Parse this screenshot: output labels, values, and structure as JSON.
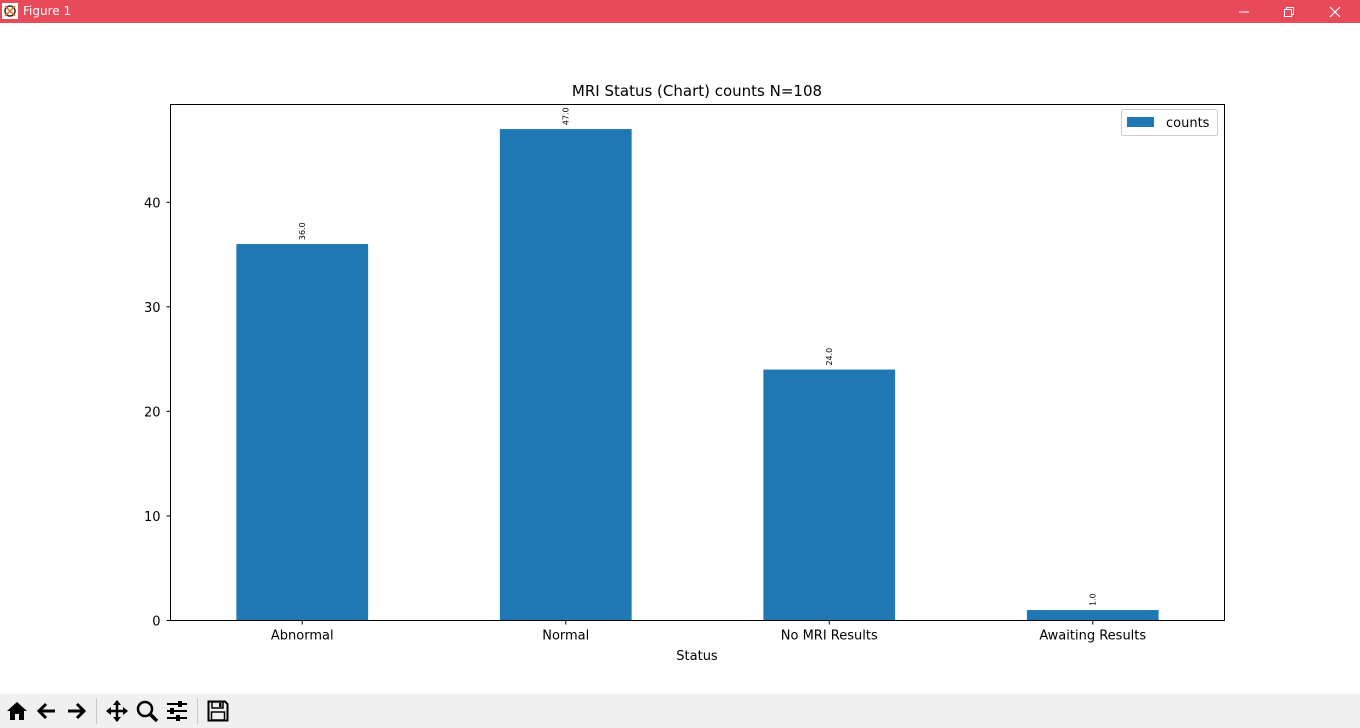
{
  "window": {
    "title": "Figure 1",
    "titlebar_color": "#e84a5a"
  },
  "toolbar": {
    "buttons": [
      "home-icon",
      "back-arrow-icon",
      "forward-arrow-icon",
      "pan-icon",
      "zoom-icon",
      "configure-subplots-icon",
      "save-icon"
    ]
  },
  "chart_data": {
    "type": "bar",
    "title": "MRI Status (Chart) counts N=108",
    "xlabel": "Status",
    "ylabel": "",
    "categories": [
      "Abnormal",
      "Normal",
      "No MRI Results",
      "Awaiting Results"
    ],
    "series": [
      {
        "name": "counts",
        "values": [
          36,
          47,
          24,
          1
        ],
        "color": "#1f77b4"
      }
    ],
    "data_labels": [
      "36.0",
      "47.0",
      "24.0",
      "1.0"
    ],
    "ylim": [
      0,
      49.35
    ],
    "yticks": [
      0,
      10,
      20,
      30,
      40
    ],
    "legend_position": "top-right",
    "grid": false
  }
}
